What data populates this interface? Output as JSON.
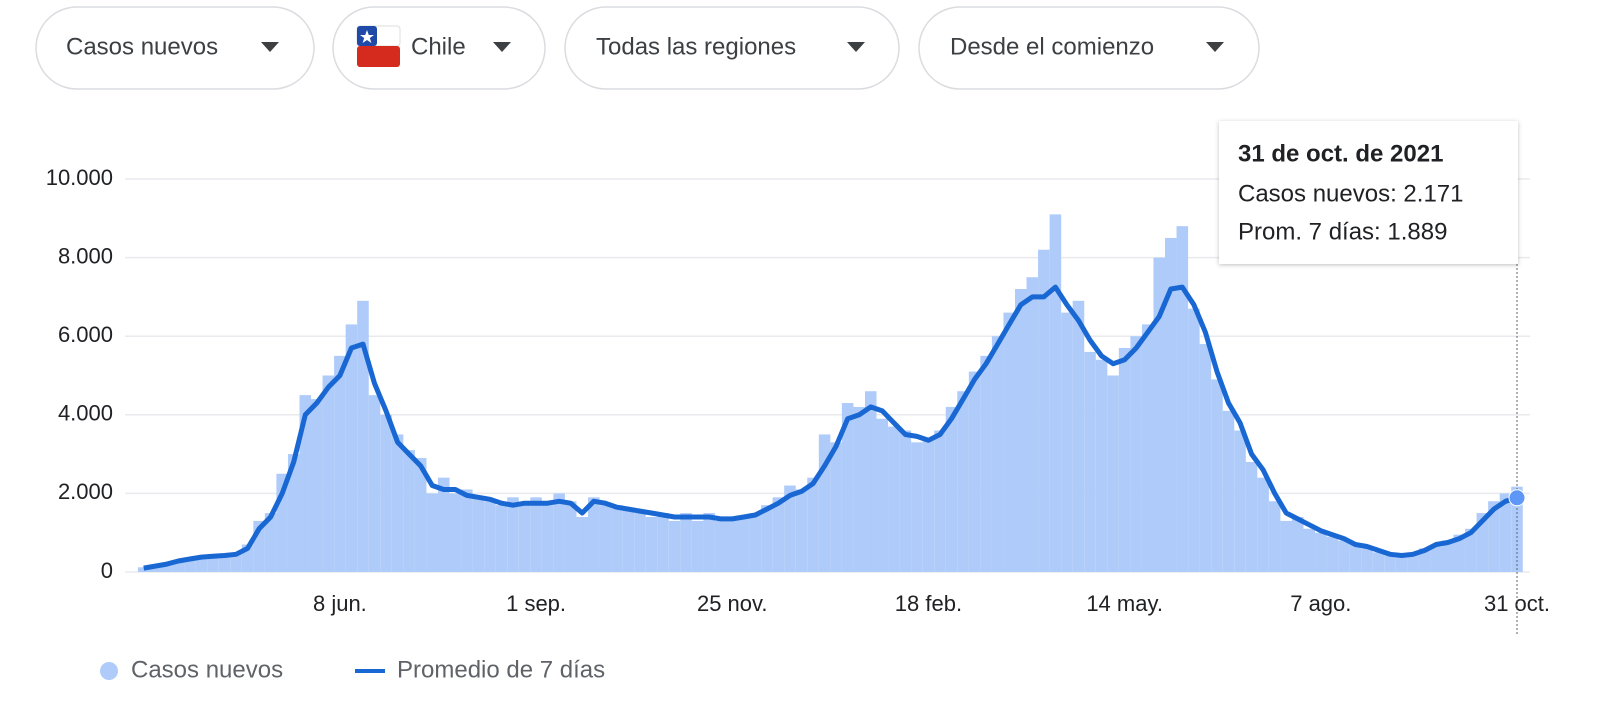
{
  "filters": [
    "Casos nuevos",
    "Chile",
    "Todas las regiones",
    "Desde el comienzo"
  ],
  "chart_data": {
    "type": "bar",
    "categories": [
      null,
      null,
      null,
      null,
      null,
      null,
      null,
      null,
      null,
      null,
      null,
      null,
      null,
      null,
      null,
      null,
      null,
      "8 jun.",
      null,
      null,
      null,
      null,
      null,
      null,
      null,
      null,
      null,
      null,
      null,
      null,
      null,
      null,
      null,
      null,
      "1 sep.",
      null,
      null,
      null,
      null,
      null,
      null,
      null,
      null,
      null,
      null,
      null,
      null,
      null,
      null,
      null,
      null,
      "25 nov.",
      null,
      null,
      null,
      null,
      null,
      null,
      null,
      null,
      null,
      null,
      null,
      null,
      null,
      null,
      null,
      null,
      "18 feb.",
      null,
      null,
      null,
      null,
      null,
      null,
      null,
      null,
      null,
      null,
      null,
      null,
      null,
      null,
      null,
      null,
      "14 may.",
      null,
      null,
      null,
      null,
      null,
      null,
      null,
      null,
      null,
      null,
      null,
      null,
      null,
      null,
      null,
      null,
      "7 ago.",
      null,
      null,
      null,
      null,
      null,
      null,
      null,
      null,
      null,
      null,
      null,
      null,
      null,
      null,
      null,
      null,
      "31 oct."
    ],
    "series": [
      {
        "name": "Casos nuevos",
        "type": "bar",
        "color": "#aecbfa",
        "values": [
          120,
          160,
          220,
          300,
          350,
          400,
          420,
          430,
          480,
          700,
          1300,
          1500,
          2500,
          3000,
          4500,
          4400,
          5000,
          5500,
          6300,
          6900,
          4500,
          4000,
          3500,
          3100,
          2900,
          2000,
          2400,
          2000,
          2100,
          1900,
          1800,
          1700,
          1900,
          1700,
          1900,
          1700,
          2000,
          1800,
          1400,
          1900,
          1700,
          1700,
          1600,
          1500,
          1400,
          1500,
          1300,
          1500,
          1300,
          1500,
          1300,
          1400,
          1400,
          1500,
          1700,
          1900,
          2200,
          2100,
          2400,
          3500,
          3300,
          4300,
          4200,
          4600,
          3900,
          3700,
          3600,
          3300,
          3400,
          3600,
          4200,
          4600,
          5100,
          5500,
          6000,
          6600,
          7200,
          7500,
          8200,
          9100,
          6600,
          6900,
          5600,
          5400,
          5000,
          5700,
          6000,
          6300,
          8000,
          8500,
          8800,
          6700,
          5800,
          4900,
          4100,
          3600,
          2800,
          2400,
          1800,
          1300,
          1400,
          1100,
          1000,
          900,
          800,
          700,
          600,
          500,
          450,
          400,
          450,
          600,
          650,
          800,
          950,
          1100,
          1500,
          1800,
          2000,
          2171
        ]
      },
      {
        "name": "Promedio de 7 días",
        "type": "line",
        "color": "#1967d2",
        "values": [
          100,
          150,
          200,
          280,
          330,
          380,
          400,
          420,
          450,
          600,
          1100,
          1400,
          2000,
          2800,
          4000,
          4300,
          4700,
          5000,
          5700,
          5800,
          4800,
          4100,
          3300,
          3000,
          2700,
          2200,
          2100,
          2100,
          1950,
          1900,
          1850,
          1750,
          1700,
          1750,
          1750,
          1750,
          1800,
          1750,
          1500,
          1800,
          1750,
          1650,
          1600,
          1550,
          1500,
          1450,
          1400,
          1400,
          1400,
          1400,
          1350,
          1350,
          1400,
          1450,
          1600,
          1750,
          1950,
          2050,
          2250,
          2700,
          3200,
          3900,
          4000,
          4200,
          4100,
          3800,
          3500,
          3450,
          3350,
          3500,
          3900,
          4400,
          4900,
          5300,
          5800,
          6300,
          6800,
          7000,
          7000,
          7250,
          6800,
          6400,
          5900,
          5500,
          5300,
          5400,
          5700,
          6100,
          6500,
          7200,
          7250,
          6800,
          6100,
          5100,
          4300,
          3800,
          3000,
          2600,
          2000,
          1500,
          1350,
          1200,
          1050,
          950,
          850,
          700,
          650,
          550,
          450,
          420,
          450,
          550,
          700,
          750,
          850,
          1000,
          1300,
          1600,
          1800,
          1889
        ]
      }
    ],
    "ylim": [
      0,
      10000
    ],
    "yticks": [
      0,
      {
        "value": 2000,
        "label": "2.000"
      },
      {
        "value": 4000,
        "label": "4.000"
      },
      {
        "value": 6000,
        "label": "6.000"
      },
      {
        "value": 8000,
        "label": "8.000"
      },
      {
        "value": 10000,
        "label": "10.000"
      }
    ],
    "grid": true,
    "legend": "bottom-left",
    "tooltip": {
      "title": "31 de oct. de 2021",
      "lines": [
        "Casos nuevos: 2.171",
        "Prom. 7 días: 1.889"
      ]
    }
  }
}
